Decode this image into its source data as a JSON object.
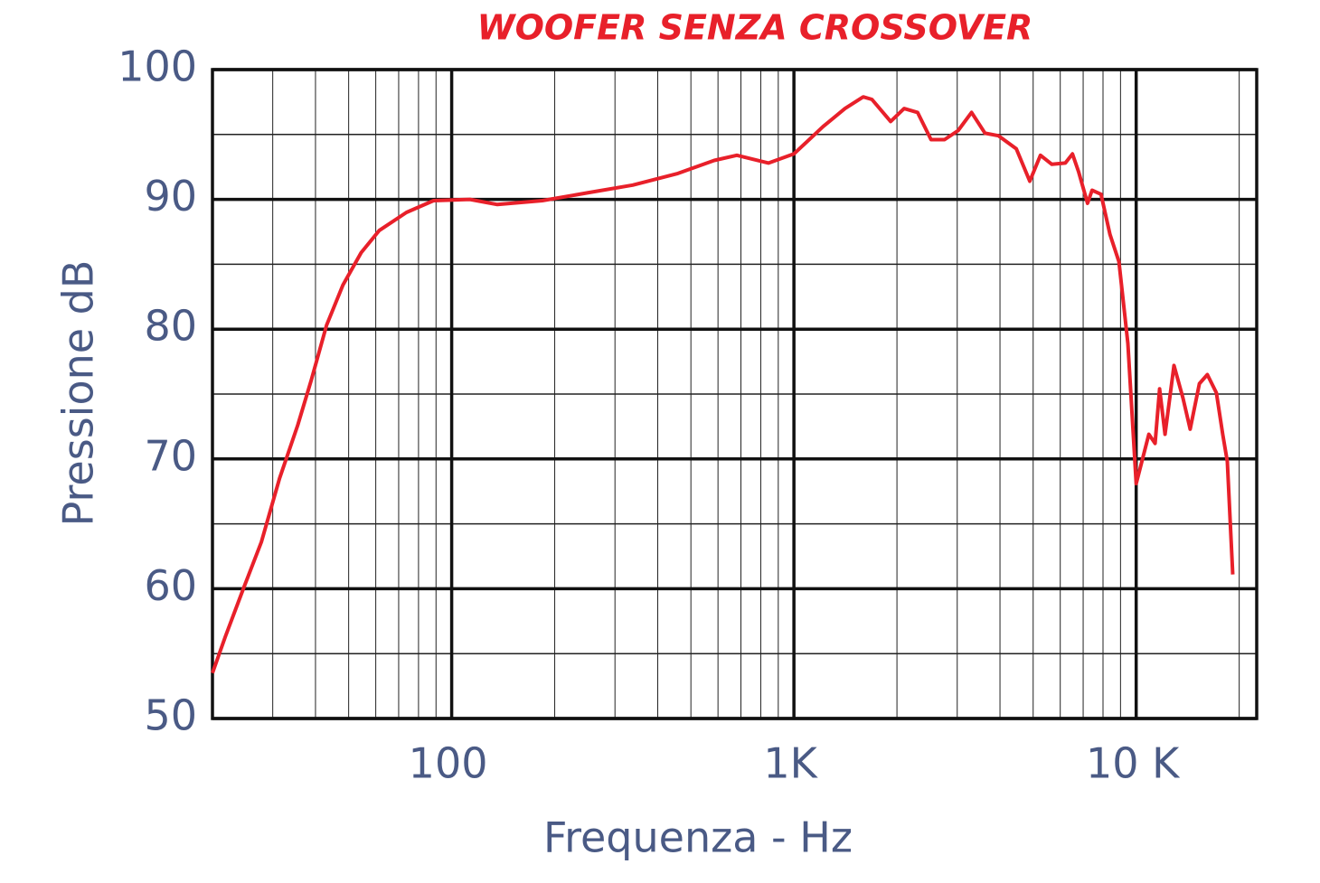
{
  "chart_data": {
    "type": "line",
    "title": "WOOFER SENZA CROSSOVER",
    "x_label": "Frequenza - Hz",
    "y_label": "Pressione  dB",
    "xscale": "log",
    "grid": true,
    "color": "#e8202a",
    "xlim": [
      20,
      22500
    ],
    "ylim": [
      50,
      100
    ],
    "xticks": [
      {
        "value": 100,
        "label": "100"
      },
      {
        "value": 1000,
        "label": "1K"
      },
      {
        "value": 10000,
        "label": "10 K"
      }
    ],
    "yticks": [
      50,
      60,
      70,
      80,
      90,
      100
    ],
    "x_minor_grid": [
      30,
      40,
      50,
      60,
      70,
      80,
      90,
      200,
      300,
      400,
      500,
      600,
      700,
      800,
      900,
      2000,
      3000,
      4000,
      5000,
      6000,
      7000,
      8000,
      9000,
      20000
    ],
    "y_minor_grid": [
      55,
      65,
      75,
      85,
      95
    ],
    "x": [
      20,
      21.8,
      24.7,
      27.8,
      31.4,
      35.5,
      38.9,
      43.1,
      48.1,
      54.4,
      61.4,
      73.8,
      88.5,
      113,
      136,
      184,
      249,
      338,
      458,
      585,
      681,
      843,
      1000,
      1215,
      1410,
      1594,
      1690,
      1917,
      2098,
      2297,
      2516,
      2755,
      3017,
      3304,
      3617,
      3961,
      4463,
      4888,
      5250,
      5669,
      6208,
      6512,
      6791,
      7211,
      7431,
      7893,
      8383,
      8903,
      9455,
      10000,
      10890,
      11360,
      11710,
      12140,
      12900,
      13700,
      14380,
      15300,
      16140,
      17150,
      17900,
      18460,
      19150
    ],
    "values": [
      53.5,
      56.3,
      60.1,
      63.6,
      68.5,
      72.6,
      76.1,
      80.3,
      83.4,
      85.9,
      87.6,
      89.0,
      89.9,
      90.0,
      89.6,
      89.9,
      90.5,
      91.1,
      92.0,
      93.0,
      93.4,
      92.8,
      93.5,
      95.6,
      97.0,
      97.9,
      97.7,
      96.0,
      97.0,
      96.7,
      94.6,
      94.6,
      95.3,
      96.7,
      95.1,
      94.9,
      93.9,
      91.4,
      93.4,
      92.7,
      92.8,
      93.5,
      92.1,
      89.7,
      90.7,
      90.4,
      87.3,
      85.2,
      78.9,
      68.1,
      71.9,
      71.2,
      75.4,
      71.9,
      77.2,
      74.7,
      72.3,
      75.8,
      76.5,
      75.1,
      71.9,
      69.8,
      61.1
    ]
  }
}
